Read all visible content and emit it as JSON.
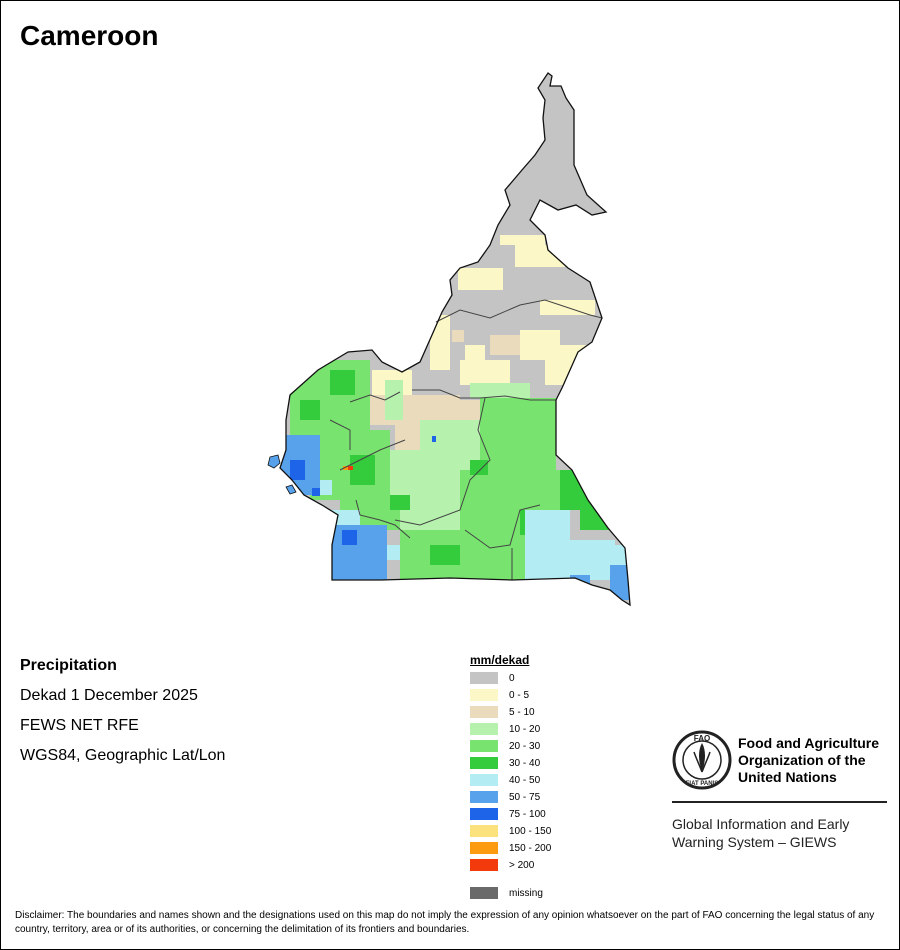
{
  "title": "Cameroon",
  "info": {
    "variable": "Precipitation",
    "period": "Dekad 1 December 2025",
    "source": "FEWS NET RFE",
    "projection": "WGS84, Geographic Lat/Lon"
  },
  "legend": {
    "unit": "mm/dekad",
    "classes": [
      {
        "label": "0",
        "color": "#c4c4c4"
      },
      {
        "label": "0 - 5",
        "color": "#fbf7c6"
      },
      {
        "label": "5 - 10",
        "color": "#e9dbbc"
      },
      {
        "label": "10 - 20",
        "color": "#b6f2ae"
      },
      {
        "label": "20 - 30",
        "color": "#78e46f"
      },
      {
        "label": "30 - 40",
        "color": "#34cc3c"
      },
      {
        "label": "40 - 50",
        "color": "#b4ecf4"
      },
      {
        "label": "50 - 75",
        "color": "#58a2ec"
      },
      {
        "label": "75 - 100",
        "color": "#1e64e8"
      },
      {
        "label": "100 - 150",
        "color": "#fce27c"
      },
      {
        "label": "150 - 200",
        "color": "#fc9a12"
      },
      {
        "label": "> 200",
        "color": "#f23a0c"
      }
    ],
    "missing": {
      "label": "missing",
      "color": "#6a6a6a"
    }
  },
  "logo": {
    "org_line1": "Food and Agriculture",
    "org_line2": "Organization of the",
    "org_line3": "United Nations",
    "giews_line1": "Global Information and Early",
    "giews_line2": "Warning System – GIEWS",
    "fao_letters": "FAO",
    "motto": "FIAT PANIS"
  },
  "disclaimer": "Disclaimer: The boundaries and names shown and the designations used on this map do not imply the expression of any opinion whatsoever on the part of FAO concerning the legal status of any country, territory, area or of its authorities, or concerning the delimitation of its frontiers and boundaries."
}
